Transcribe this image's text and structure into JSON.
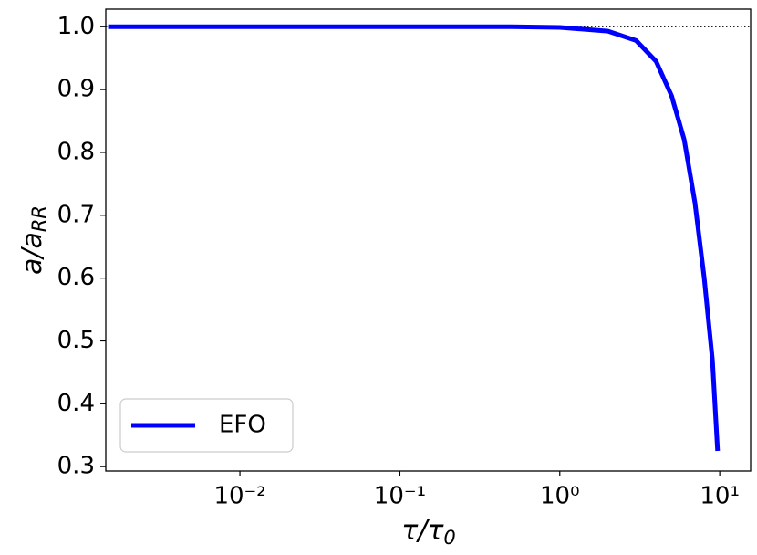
{
  "chart_data": {
    "type": "line",
    "x_label": [
      "τ/τ",
      "0"
    ],
    "y_label": [
      "a/a",
      "RR"
    ],
    "x": [
      0.0015,
      0.01,
      0.1,
      0.5,
      1,
      2,
      3,
      4,
      5,
      6,
      7,
      8,
      9,
      9.7
    ],
    "series": [
      {
        "name": "EFO",
        "color": "#0000ff",
        "values": [
          1.0,
          1.0,
          1.0,
          1.0,
          0.999,
          0.993,
          0.978,
          0.945,
          0.89,
          0.82,
          0.72,
          0.6,
          0.47,
          0.325
        ]
      }
    ],
    "x_scale": "log",
    "xlim": [
      0.00145,
      15.6
    ],
    "ylim": [
      0.293,
      1.028
    ],
    "xticks": [
      {
        "value": 0.01,
        "label": "10⁻²"
      },
      {
        "value": 0.1,
        "label": "10⁻¹"
      },
      {
        "value": 1,
        "label": "10⁰"
      },
      {
        "value": 10,
        "label": "10¹"
      }
    ],
    "yticks": [
      {
        "value": 0.3,
        "label": "0.3"
      },
      {
        "value": 0.4,
        "label": "0.4"
      },
      {
        "value": 0.5,
        "label": "0.5"
      },
      {
        "value": 0.6,
        "label": "0.6"
      },
      {
        "value": 0.7,
        "label": "0.7"
      },
      {
        "value": 0.8,
        "label": "0.8"
      },
      {
        "value": 0.9,
        "label": "0.9"
      },
      {
        "value": 1.0,
        "label": "1.0"
      }
    ],
    "hline": 1.0,
    "legend": "lower left"
  }
}
